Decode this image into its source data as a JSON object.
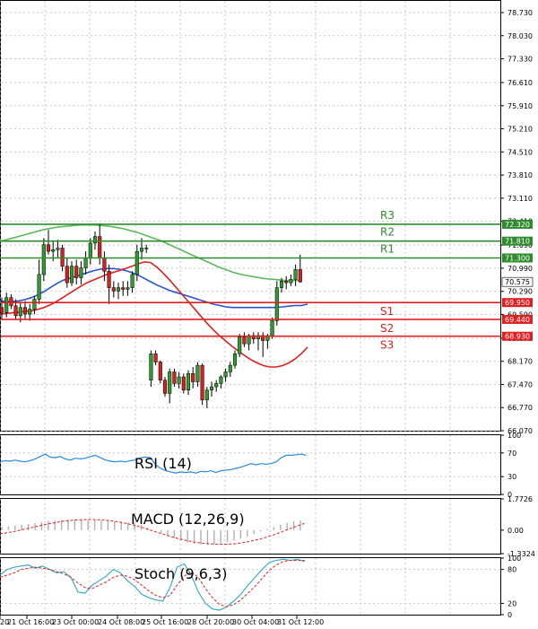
{
  "chart_data": {
    "type": "candlestick",
    "main": {
      "y_ticks": [
        "78.730",
        "78.030",
        "77.330",
        "76.610",
        "75.910",
        "75.210",
        "74.510",
        "73.810",
        "73.110",
        "72.410",
        "71.690",
        "70.990",
        "70.290",
        "69.590",
        "68.870",
        "68.170",
        "67.470",
        "66.770",
        "66.070"
      ],
      "ylim": [
        66.07,
        78.73
      ],
      "candles": [
        {
          "o": 69.8,
          "h": 70.1,
          "l": 69.45,
          "c": 69.65
        },
        {
          "o": 69.65,
          "h": 70.25,
          "l": 69.5,
          "c": 70.1
        },
        {
          "o": 70.1,
          "h": 70.2,
          "l": 69.75,
          "c": 69.85
        },
        {
          "o": 69.85,
          "h": 70.05,
          "l": 69.45,
          "c": 69.55
        },
        {
          "o": 69.55,
          "h": 69.95,
          "l": 69.35,
          "c": 69.8
        },
        {
          "o": 69.8,
          "h": 70.0,
          "l": 69.45,
          "c": 69.6
        },
        {
          "o": 69.6,
          "h": 69.9,
          "l": 69.4,
          "c": 69.75
        },
        {
          "o": 69.75,
          "h": 70.15,
          "l": 69.6,
          "c": 70.05
        },
        {
          "o": 70.05,
          "h": 71.25,
          "l": 69.9,
          "c": 70.8
        },
        {
          "o": 70.8,
          "h": 71.9,
          "l": 70.6,
          "c": 71.7
        },
        {
          "o": 71.7,
          "h": 72.15,
          "l": 71.4,
          "c": 71.5
        },
        {
          "o": 71.5,
          "h": 71.8,
          "l": 71.2,
          "c": 71.55
        },
        {
          "o": 71.55,
          "h": 71.85,
          "l": 71.3,
          "c": 71.6
        },
        {
          "o": 71.6,
          "h": 71.7,
          "l": 70.9,
          "c": 71.05
        },
        {
          "o": 71.05,
          "h": 71.3,
          "l": 70.4,
          "c": 70.55
        },
        {
          "o": 70.55,
          "h": 71.2,
          "l": 70.45,
          "c": 71.05
        },
        {
          "o": 71.05,
          "h": 71.25,
          "l": 70.5,
          "c": 70.7
        },
        {
          "o": 70.7,
          "h": 71.2,
          "l": 70.5,
          "c": 71.0
        },
        {
          "o": 71.0,
          "h": 71.5,
          "l": 70.8,
          "c": 71.3
        },
        {
          "o": 71.3,
          "h": 71.9,
          "l": 71.1,
          "c": 71.75
        },
        {
          "o": 71.75,
          "h": 72.1,
          "l": 71.55,
          "c": 71.95
        },
        {
          "o": 71.95,
          "h": 72.35,
          "l": 71.1,
          "c": 71.3
        },
        {
          "o": 71.3,
          "h": 71.5,
          "l": 70.6,
          "c": 70.9
        },
        {
          "o": 70.9,
          "h": 71.1,
          "l": 69.9,
          "c": 70.4
        },
        {
          "o": 70.4,
          "h": 70.6,
          "l": 70.1,
          "c": 70.3
        },
        {
          "o": 70.3,
          "h": 70.55,
          "l": 70.05,
          "c": 70.4
        },
        {
          "o": 70.4,
          "h": 70.6,
          "l": 70.15,
          "c": 70.35
        },
        {
          "o": 70.35,
          "h": 70.6,
          "l": 70.15,
          "c": 70.4
        },
        {
          "o": 70.4,
          "h": 70.9,
          "l": 70.25,
          "c": 70.8
        },
        {
          "o": 70.8,
          "h": 71.7,
          "l": 70.6,
          "c": 71.5
        },
        {
          "o": 71.5,
          "h": 71.9,
          "l": 71.25,
          "c": 71.6
        },
        {
          "o": 71.6,
          "h": 71.7,
          "l": 71.45,
          "c": 71.6
        },
        {
          "o": 67.6,
          "h": 68.5,
          "l": 67.4,
          "c": 68.4
        },
        {
          "o": 68.4,
          "h": 68.5,
          "l": 68.05,
          "c": 68.15
        },
        {
          "o": 68.15,
          "h": 68.2,
          "l": 67.5,
          "c": 67.6
        },
        {
          "o": 67.6,
          "h": 67.7,
          "l": 67.1,
          "c": 67.2
        },
        {
          "o": 67.2,
          "h": 67.95,
          "l": 66.9,
          "c": 67.85
        },
        {
          "o": 67.85,
          "h": 67.95,
          "l": 67.4,
          "c": 67.5
        },
        {
          "o": 67.5,
          "h": 67.85,
          "l": 67.35,
          "c": 67.7
        },
        {
          "o": 67.7,
          "h": 67.8,
          "l": 67.2,
          "c": 67.3
        },
        {
          "o": 67.3,
          "h": 67.9,
          "l": 67.15,
          "c": 67.8
        },
        {
          "o": 67.8,
          "h": 68.0,
          "l": 67.35,
          "c": 67.55
        },
        {
          "o": 67.55,
          "h": 68.15,
          "l": 67.4,
          "c": 68.05
        },
        {
          "o": 68.05,
          "h": 68.1,
          "l": 66.85,
          "c": 67.0
        },
        {
          "o": 67.0,
          "h": 67.4,
          "l": 66.75,
          "c": 67.3
        },
        {
          "o": 67.3,
          "h": 67.55,
          "l": 67.1,
          "c": 67.4
        },
        {
          "o": 67.4,
          "h": 67.6,
          "l": 67.25,
          "c": 67.5
        },
        {
          "o": 67.5,
          "h": 67.75,
          "l": 67.35,
          "c": 67.7
        },
        {
          "o": 67.7,
          "h": 67.95,
          "l": 67.55,
          "c": 67.85
        },
        {
          "o": 67.85,
          "h": 68.15,
          "l": 67.7,
          "c": 68.05
        },
        {
          "o": 68.05,
          "h": 68.5,
          "l": 67.95,
          "c": 68.4
        },
        {
          "o": 68.4,
          "h": 69.0,
          "l": 68.3,
          "c": 68.9
        },
        {
          "o": 68.9,
          "h": 69.05,
          "l": 68.6,
          "c": 68.7
        },
        {
          "o": 68.7,
          "h": 69.0,
          "l": 68.5,
          "c": 68.95
        },
        {
          "o": 68.95,
          "h": 69.05,
          "l": 68.7,
          "c": 68.85
        },
        {
          "o": 68.85,
          "h": 69.05,
          "l": 68.5,
          "c": 68.95
        },
        {
          "o": 68.95,
          "h": 69.05,
          "l": 68.3,
          "c": 68.8
        },
        {
          "o": 68.8,
          "h": 69.0,
          "l": 68.55,
          "c": 68.95
        },
        {
          "o": 68.95,
          "h": 69.5,
          "l": 68.85,
          "c": 69.4
        },
        {
          "o": 69.4,
          "h": 70.6,
          "l": 69.25,
          "c": 70.4
        },
        {
          "o": 70.4,
          "h": 70.7,
          "l": 70.25,
          "c": 70.6
        },
        {
          "o": 70.6,
          "h": 70.75,
          "l": 70.35,
          "c": 70.55
        },
        {
          "o": 70.55,
          "h": 70.8,
          "l": 70.45,
          "c": 70.65
        },
        {
          "o": 70.65,
          "h": 71.1,
          "l": 70.45,
          "c": 70.95
        },
        {
          "o": 70.95,
          "h": 71.4,
          "l": 70.55,
          "c": 70.575
        }
      ],
      "ma_red": [
        69.6,
        69.62,
        69.64,
        69.66,
        69.68,
        69.7,
        69.74,
        69.8,
        69.88,
        69.98,
        70.1,
        70.22,
        70.34,
        70.46,
        70.56,
        70.64,
        70.72,
        70.8,
        70.86,
        70.92,
        70.98,
        71.05,
        71.12,
        71.18,
        71.16,
        71.02,
        70.84,
        70.64,
        70.42,
        70.2,
        69.98,
        69.76,
        69.54,
        69.32,
        69.12,
        68.94,
        68.78,
        68.62,
        68.48,
        68.34,
        68.22,
        68.12,
        68.04,
        68.0,
        68.0,
        68.04,
        68.12,
        68.24,
        68.4,
        68.6
      ],
      "ma_blue": [
        70.0,
        69.98,
        69.98,
        70.0,
        70.04,
        70.1,
        70.18,
        70.28,
        70.4,
        70.52,
        70.62,
        70.68,
        70.74,
        70.8,
        70.86,
        70.92,
        70.96,
        70.98,
        70.98,
        70.96,
        70.92,
        70.86,
        70.78,
        70.68,
        70.58,
        70.48,
        70.4,
        70.32,
        70.26,
        70.2,
        70.14,
        70.08,
        70.02,
        69.96,
        69.9,
        69.86,
        69.82,
        69.8,
        69.8,
        69.8,
        69.8,
        69.8,
        69.8,
        69.8,
        69.8,
        69.82,
        69.84,
        69.86,
        69.86,
        69.9
      ],
      "ma_green": [
        71.8,
        71.86,
        71.92,
        71.98,
        72.04,
        72.1,
        72.16,
        72.2,
        72.24,
        72.26,
        72.28,
        72.3,
        72.3,
        72.3,
        72.28,
        72.26,
        72.22,
        72.18,
        72.12,
        72.06,
        71.98,
        71.9,
        71.82,
        71.72,
        71.62,
        71.52,
        71.42,
        71.32,
        71.22,
        71.12,
        71.02,
        70.94,
        70.86,
        70.8,
        70.76,
        70.72,
        70.68,
        70.66,
        70.64,
        70.62,
        70.62,
        70.62
      ],
      "current_price": "70.575"
    },
    "levels": [
      {
        "label": "R3",
        "value": "72.320",
        "color": "#2e8b2e"
      },
      {
        "label": "R2",
        "value": "71.810",
        "color": "#2e8b2e"
      },
      {
        "label": "R1",
        "value": "71.300",
        "color": "#2e8b2e"
      },
      {
        "label": "S1",
        "value": "69.950",
        "color": "#e02020"
      },
      {
        "label": "S2",
        "value": "69.440",
        "color": "#e02020"
      },
      {
        "label": "S3",
        "value": "68.930",
        "color": "#e02020"
      }
    ],
    "rsi": {
      "label": "RSI (14)",
      "y_ticks": [
        "100",
        "70",
        "30",
        "0"
      ],
      "values": [
        55,
        57,
        56,
        58,
        56,
        55,
        57,
        60,
        64,
        68,
        63,
        62,
        64,
        60,
        58,
        61,
        60,
        61,
        64,
        66,
        62,
        58,
        56,
        55,
        56,
        55,
        57,
        58,
        62,
        63,
        62,
        50,
        44,
        40,
        38,
        36,
        38,
        37,
        38,
        36,
        39,
        38,
        40,
        37,
        40,
        41,
        42,
        44,
        46,
        49,
        52,
        50,
        52,
        51,
        52,
        55,
        62,
        66,
        66,
        67,
        68,
        66
      ]
    },
    "macd": {
      "label": "MACD (12,26,9)",
      "y_ticks": [
        "1.7726",
        "0.00",
        "-1.3324"
      ],
      "hist": [
        0.2,
        0.22,
        0.25,
        0.3,
        0.35,
        0.4,
        0.45,
        0.5,
        0.55,
        0.58,
        0.6,
        0.62,
        0.6,
        0.58,
        0.56,
        0.54,
        0.52,
        0.5,
        0.48,
        0.45,
        0.4,
        0.3,
        0.15,
        0.0,
        -0.15,
        -0.3,
        -0.45,
        -0.58,
        -0.7,
        -0.78,
        -0.82,
        -0.84,
        -0.8,
        -0.74,
        -0.66,
        -0.58,
        -0.48,
        -0.36,
        -0.22,
        -0.08,
        0.05,
        0.18,
        0.3,
        0.4,
        0.5,
        0.55
      ],
      "signal": [
        -0.2,
        -0.14,
        -0.06,
        0.04,
        0.14,
        0.24,
        0.34,
        0.42,
        0.5,
        0.55,
        0.58,
        0.6,
        0.6,
        0.58,
        0.54,
        0.48,
        0.4,
        0.3,
        0.18,
        0.04,
        -0.1,
        -0.24,
        -0.38,
        -0.5,
        -0.6,
        -0.68,
        -0.74,
        -0.78,
        -0.8,
        -0.8,
        -0.78,
        -0.72,
        -0.64,
        -0.54,
        -0.42,
        -0.28,
        -0.12,
        0.06,
        0.22,
        0.38
      ]
    },
    "stoch": {
      "label": "Stoch (9,6,3)",
      "y_ticks": [
        "100",
        "80",
        "20",
        "0"
      ],
      "k": [
        70,
        80,
        84,
        86,
        88,
        82,
        86,
        80,
        74,
        76,
        66,
        40,
        38,
        52,
        60,
        68,
        80,
        74,
        60,
        50,
        36,
        30,
        26,
        24,
        48,
        84,
        90,
        70,
        40,
        20,
        10,
        8,
        14,
        24,
        36,
        52,
        66,
        80,
        92,
        96,
        98,
        96,
        98,
        94
      ],
      "d": [
        66,
        70,
        74,
        80,
        82,
        84,
        82,
        80,
        76,
        72,
        66,
        56,
        48,
        46,
        52,
        58,
        66,
        70,
        68,
        62,
        52,
        42,
        34,
        30,
        34,
        52,
        68,
        76,
        66,
        46,
        30,
        18,
        14,
        18,
        26,
        38,
        50,
        64,
        78,
        88,
        94,
        96,
        96,
        96
      ]
    },
    "x_ticks": [
      "20",
      "21 Oct 16:00",
      "23 Oct 00:00",
      "24 Oct 08:00",
      "25 Oct 16:00",
      "28 Oct 20:00",
      "30 Oct 04:00",
      "31 Oct 12:00"
    ],
    "colors": {
      "bull": "#2e9c2e",
      "bear": "#d62020",
      "blue": "#2a55d0",
      "green_ma": "#5cb85c",
      "red_ma": "#e02020",
      "grid": "#c8c8c8"
    }
  }
}
